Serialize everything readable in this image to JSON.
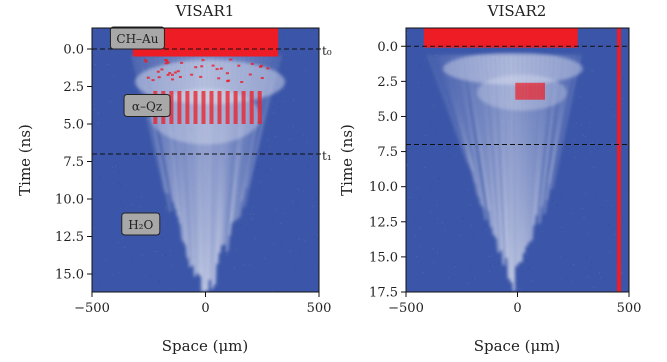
{
  "figure": {
    "shared_xlabel": "Space (μm)",
    "shared_ylabel": "Time (ns)"
  },
  "chart_data": [
    {
      "type": "heatmap",
      "title": "VISAR1",
      "xlabel": "Space (μm)",
      "ylabel": "Time (ns)",
      "xlim": [
        -500,
        500
      ],
      "ylim": [
        16.2,
        -1.4
      ],
      "y_inverted": true,
      "x_ticks": [
        -500,
        0,
        500
      ],
      "x_tick_labels": [
        "−500",
        "0",
        "500"
      ],
      "y_ticks": [
        0.0,
        2.5,
        5.0,
        7.5,
        10.0,
        12.5,
        15.0
      ],
      "y_tick_labels": [
        "0.0",
        "2.5",
        "5.0",
        "7.5",
        "10.0",
        "12.5",
        "15.0"
      ],
      "grid": false,
      "colors": {
        "background": "#3b56a8",
        "fringe": "#e8eaf4",
        "saturated": "#ee1c24"
      },
      "region_labels": [
        {
          "text": "CH–Au",
          "x": -410,
          "y": -0.6
        },
        {
          "text": "α–Qz",
          "x": -350,
          "y": 3.9
        },
        {
          "text": "H₂O",
          "x": -360,
          "y": 11.8
        }
      ],
      "time_markers": [
        {
          "label": "t₀",
          "time_ns": 0.0
        },
        {
          "label": "t₁",
          "time_ns": 7.0
        }
      ]
    },
    {
      "type": "heatmap",
      "title": "VISAR2",
      "xlabel": "Space (μm)",
      "ylabel": "Time (ns)",
      "xlim": [
        -500,
        500
      ],
      "ylim": [
        17.5,
        -1.3
      ],
      "y_inverted": true,
      "x_ticks": [
        -500,
        0,
        500
      ],
      "x_tick_labels": [
        "−500",
        "0",
        "500"
      ],
      "y_ticks": [
        0.0,
        2.5,
        5.0,
        7.5,
        10.0,
        12.5,
        15.0,
        17.5
      ],
      "y_tick_labels": [
        "0.0",
        "2.5",
        "5.0",
        "7.5",
        "10.0",
        "12.5",
        "15.0",
        "17.5"
      ],
      "grid": false,
      "colors": {
        "background": "#3b56a8",
        "fringe": "#e8eaf4",
        "saturated": "#ee1c24"
      },
      "dashed_lines_ns": [
        0.0,
        7.0
      ],
      "vertical_line_um": 455
    }
  ]
}
